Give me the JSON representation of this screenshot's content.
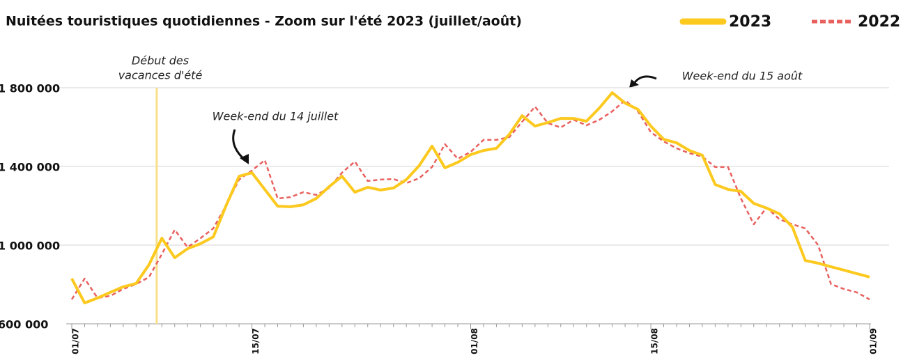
{
  "chart_data": {
    "type": "line",
    "title": "Nuitées touristiques quotidiennes - Zoom sur l'été 2023 (juillet/août)",
    "categories": [
      "01/07",
      null,
      null,
      null,
      null,
      null,
      null,
      null,
      null,
      null,
      null,
      null,
      null,
      null,
      "15/07",
      null,
      null,
      null,
      null,
      null,
      null,
      null,
      null,
      null,
      null,
      null,
      null,
      null,
      null,
      null,
      null,
      "01/08",
      null,
      null,
      null,
      null,
      null,
      null,
      null,
      null,
      null,
      null,
      null,
      null,
      null,
      "15/08",
      null,
      null,
      null,
      null,
      null,
      null,
      null,
      null,
      null,
      null,
      null,
      null,
      null,
      null,
      null,
      null,
      "01/09"
    ],
    "series": [
      {
        "name": "2023",
        "color": "#fcc91f",
        "values": [
          830000,
          706000,
          731000,
          760000,
          788000,
          805000,
          900000,
          1035000,
          936000,
          982000,
          1007000,
          1042000,
          1202000,
          1350000,
          1368000,
          1283000,
          1198000,
          1195000,
          1205000,
          1237000,
          1297000,
          1350000,
          1269000,
          1294000,
          1280000,
          1290000,
          1333000,
          1404000,
          1503000,
          1393000,
          1421000,
          1460000,
          1481000,
          1492000,
          1563000,
          1658000,
          1605000,
          1623000,
          1644000,
          1644000,
          1630000,
          1697000,
          1775000,
          1722000,
          1690000,
          1605000,
          1538000,
          1520000,
          1481000,
          1457000,
          1308000,
          1283000,
          1273000,
          1212000,
          1188000,
          1159000,
          1092000,
          922000,
          908000,
          890000,
          873000,
          855000,
          838000
        ]
      },
      {
        "name": "2022",
        "color": "#e8605e",
        "values": [
          724000,
          830000,
          731000,
          742000,
          777000,
          802000,
          837000,
          954000,
          1078000,
          989000,
          1035000,
          1085000,
          1202000,
          1333000,
          1379000,
          1432000,
          1237000,
          1244000,
          1269000,
          1255000,
          1290000,
          1368000,
          1425000,
          1326000,
          1333000,
          1336000,
          1315000,
          1340000,
          1397000,
          1513000,
          1439000,
          1474000,
          1535000,
          1535000,
          1549000,
          1627000,
          1704000,
          1620000,
          1598000,
          1637000,
          1609000,
          1637000,
          1680000,
          1736000,
          1680000,
          1574000,
          1527000,
          1492000,
          1467000,
          1450000,
          1397000,
          1397000,
          1237000,
          1106000,
          1191000,
          1131000,
          1106000,
          1085000,
          1000000,
          802000,
          777000,
          760000,
          724000
        ]
      }
    ],
    "ylim": [
      600000,
      1800000
    ],
    "yticks": [
      {
        "value": 600000,
        "label": "600 000"
      },
      {
        "value": 1000000,
        "label": "1 000 000"
      },
      {
        "value": 1400000,
        "label": "1 400 000"
      },
      {
        "value": 1800000,
        "label": "1 800 000"
      }
    ],
    "grid": true,
    "annotations": [
      {
        "lines": [
          "Début des",
          "vacances d'été"
        ]
      },
      {
        "lines": [
          "Week-end du 14 juillet"
        ]
      },
      {
        "lines": [
          "Week-end du 15 août"
        ]
      }
    ]
  }
}
